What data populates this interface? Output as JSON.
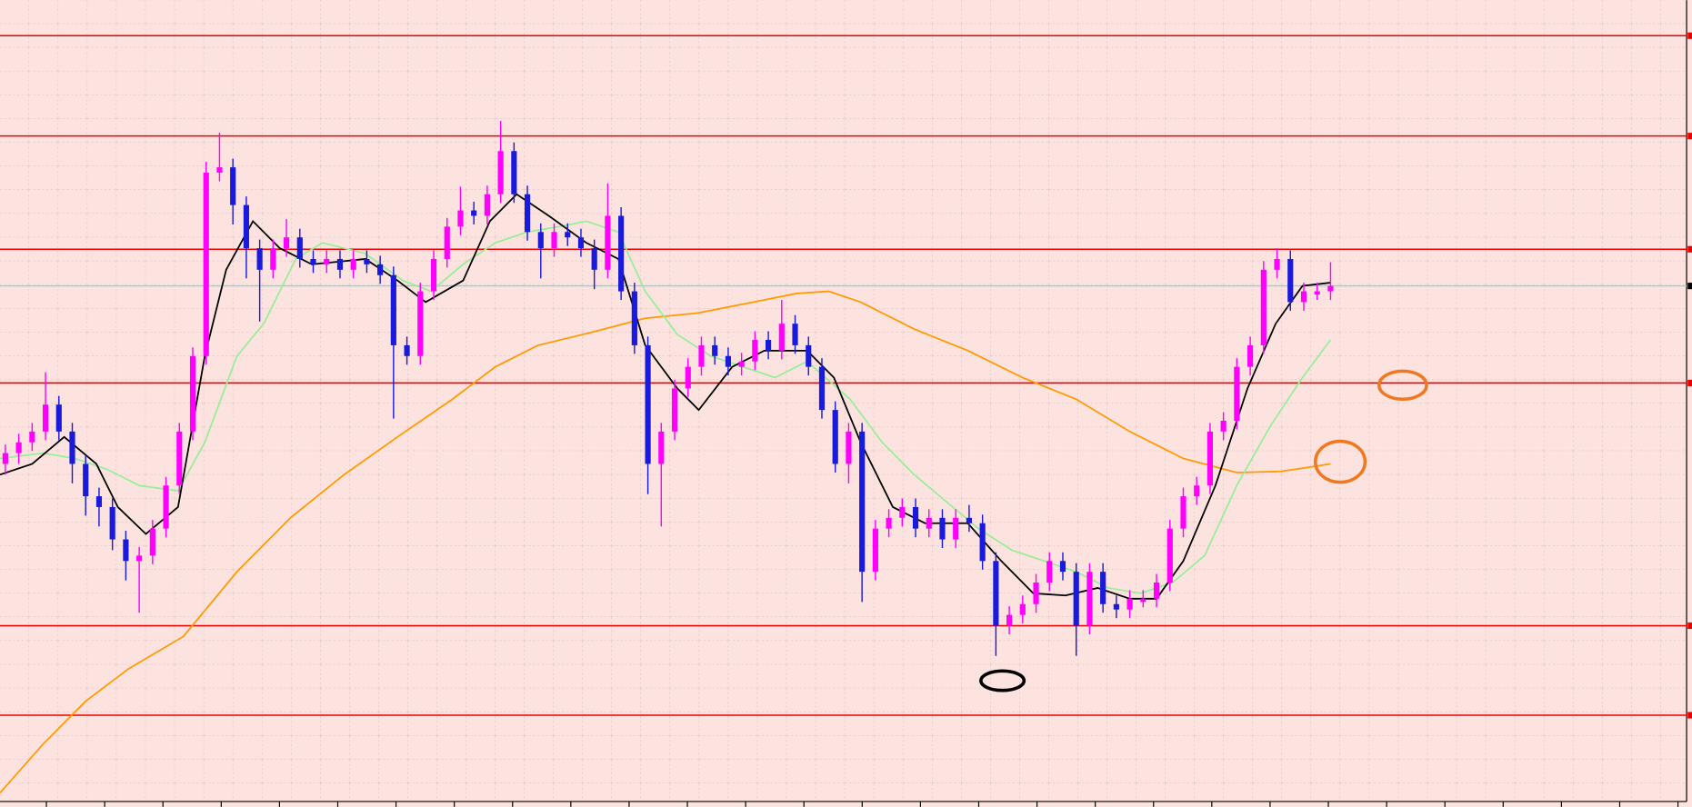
{
  "chart_data": {
    "type": "candlestick",
    "up_color": "#ff00ff",
    "down_color": "#1a1adc",
    "background": "#fde3e0",
    "xlim": [
      -0.4,
      125.6
    ],
    "ylim": [
      0,
      748
    ],
    "open": [
      318,
      328,
      338,
      348,
      373,
      348,
      318,
      288,
      278,
      248,
      228,
      233,
      258,
      298,
      348,
      418,
      588,
      593,
      558,
      518,
      498,
      518,
      528,
      508,
      503,
      508,
      498,
      508,
      503,
      493,
      428,
      418,
      478,
      508,
      538,
      553,
      548,
      568,
      608,
      568,
      533,
      518,
      533,
      528,
      518,
      498,
      548,
      478,
      428,
      318,
      348,
      388,
      408,
      428,
      418,
      408,
      413,
      433,
      423,
      448,
      428,
      408,
      368,
      318,
      348,
      218,
      258,
      268,
      278,
      258,
      268,
      248,
      268,
      263,
      228,
      168,
      178,
      188,
      208,
      228,
      218,
      168,
      218,
      188,
      183,
      190,
      193,
      208,
      258,
      288,
      298,
      348,
      358,
      408,
      428,
      498,
      508,
      468,
      475,
      478
    ],
    "close": [
      328,
      338,
      348,
      373,
      348,
      318,
      288,
      278,
      248,
      228,
      233,
      258,
      298,
      348,
      418,
      588,
      593,
      558,
      518,
      498,
      518,
      528,
      508,
      503,
      508,
      498,
      508,
      503,
      493,
      428,
      418,
      478,
      508,
      538,
      553,
      548,
      568,
      608,
      568,
      533,
      518,
      533,
      528,
      518,
      498,
      548,
      478,
      428,
      318,
      348,
      388,
      408,
      428,
      418,
      408,
      413,
      433,
      423,
      448,
      428,
      408,
      368,
      318,
      348,
      218,
      258,
      268,
      278,
      258,
      268,
      248,
      268,
      263,
      228,
      168,
      178,
      188,
      208,
      228,
      218,
      168,
      218,
      188,
      183,
      193,
      193,
      208,
      258,
      288,
      298,
      348,
      358,
      408,
      428,
      498,
      508,
      468,
      478,
      478,
      483
    ],
    "high": [
      336,
      346,
      356,
      403,
      381,
      356,
      326,
      296,
      286,
      256,
      241,
      266,
      306,
      356,
      426,
      598,
      625,
      601,
      566,
      526,
      526,
      545,
      536,
      516,
      516,
      516,
      516,
      516,
      511,
      501,
      436,
      486,
      516,
      546,
      575,
      561,
      576,
      636,
      616,
      576,
      541,
      541,
      541,
      536,
      526,
      578,
      556,
      486,
      436,
      356,
      396,
      416,
      436,
      436,
      426,
      421,
      441,
      441,
      470,
      456,
      436,
      416,
      376,
      356,
      356,
      266,
      276,
      286,
      286,
      276,
      276,
      276,
      280,
      271,
      236,
      186,
      196,
      216,
      236,
      236,
      226,
      226,
      226,
      196,
      201,
      201,
      216,
      266,
      296,
      306,
      356,
      366,
      416,
      436,
      506,
      518,
      516,
      486,
      486,
      505
    ],
    "low": [
      308,
      318,
      330,
      340,
      340,
      300,
      270,
      260,
      238,
      210,
      180,
      225,
      250,
      290,
      340,
      410,
      580,
      540,
      490,
      450,
      490,
      510,
      500,
      495,
      495,
      490,
      490,
      495,
      485,
      360,
      410,
      410,
      470,
      500,
      530,
      540,
      540,
      560,
      560,
      525,
      490,
      510,
      520,
      510,
      480,
      490,
      470,
      420,
      290,
      260,
      340,
      380,
      400,
      410,
      400,
      400,
      405,
      415,
      415,
      420,
      400,
      360,
      310,
      300,
      190,
      210,
      250,
      260,
      250,
      250,
      240,
      240,
      255,
      220,
      140,
      160,
      170,
      180,
      200,
      210,
      140,
      160,
      180,
      175,
      175,
      185,
      185,
      200,
      250,
      280,
      290,
      340,
      350,
      400,
      420,
      490,
      460,
      460,
      470,
      470
    ],
    "overlays": [
      {
        "color": "#ff9a00",
        "x": [
          -0.4,
          2.8,
          6,
          9.2,
          13.3,
          17.3,
          21.3,
          25.3,
          29.3,
          33.4,
          36.6,
          39.8,
          43.8,
          47.8,
          51.8,
          55.9,
          59.1,
          61.5,
          63.9,
          67.9,
          71.9,
          76,
          80,
          84,
          88,
          92,
          95.3,
          99
        ],
        "values": [
          13,
          58,
          98,
          128,
          158,
          218,
          268,
          308,
          343,
          378,
          408,
          428,
          440,
          453,
          458,
          468,
          476,
          478,
          468,
          443,
          423,
          398,
          378,
          348,
          323,
          310,
          311,
          318
        ]
      },
      {
        "color": "#98ee98",
        "x": [
          -0.4,
          2.8,
          5.2,
          7.6,
          10,
          12.9,
          14.9,
          17.3,
          19.3,
          21.7,
          23.7,
          26.9,
          29.7,
          31.8,
          34.2,
          36.6,
          39,
          41.4,
          43.4,
          45.8,
          47.8,
          50.2,
          52.7,
          55.1,
          57.5,
          59.9,
          63.1,
          65.5,
          67.9,
          70.3,
          72.7,
          75.2,
          77.6,
          80,
          82.4,
          84.8,
          87.2,
          89.6,
          92,
          94.5,
          96.9,
          99
        ],
        "values": [
          323,
          328,
          323,
          313,
          298,
          293,
          338,
          418,
          448,
          508,
          523,
          513,
          488,
          478,
          503,
          523,
          533,
          538,
          543,
          533,
          478,
          438,
          418,
          408,
          398,
          413,
          378,
          338,
          308,
          283,
          258,
          238,
          228,
          218,
          203,
          198,
          208,
          233,
          298,
          353,
          398,
          433
        ]
      },
      {
        "color": "#000000",
        "x": [
          -0.4,
          2,
          4.4,
          6.8,
          8.4,
          10.5,
          12.9,
          14.9,
          16.5,
          18.5,
          20.5,
          22.9,
          26.9,
          29.3,
          31.4,
          34.2,
          36.2,
          38.2,
          40.6,
          43.4,
          45.8,
          47.8,
          50.2,
          51.8,
          54.3,
          56.7,
          59.9,
          61.9,
          63.9,
          66.3,
          68.7,
          71.9,
          74.4,
          76.8,
          79.2,
          81.6,
          84,
          86,
          88,
          90.4,
          92.8,
          94.9,
          96.9,
          99
        ],
        "values": [
          308,
          318,
          343,
          318,
          278,
          253,
          278,
          418,
          498,
          543,
          518,
          503,
          508,
          488,
          468,
          488,
          543,
          568,
          548,
          523,
          508,
          428,
          388,
          368,
          408,
          423,
          423,
          398,
          338,
          278,
          263,
          263,
          228,
          198,
          196,
          203,
          193,
          193,
          228,
          298,
          388,
          448,
          483,
          486
        ]
      }
    ],
    "levels": [
      715,
      622,
      517,
      393,
      168,
      85
    ],
    "level_color": "#ee0000",
    "price_line": 483
  }
}
